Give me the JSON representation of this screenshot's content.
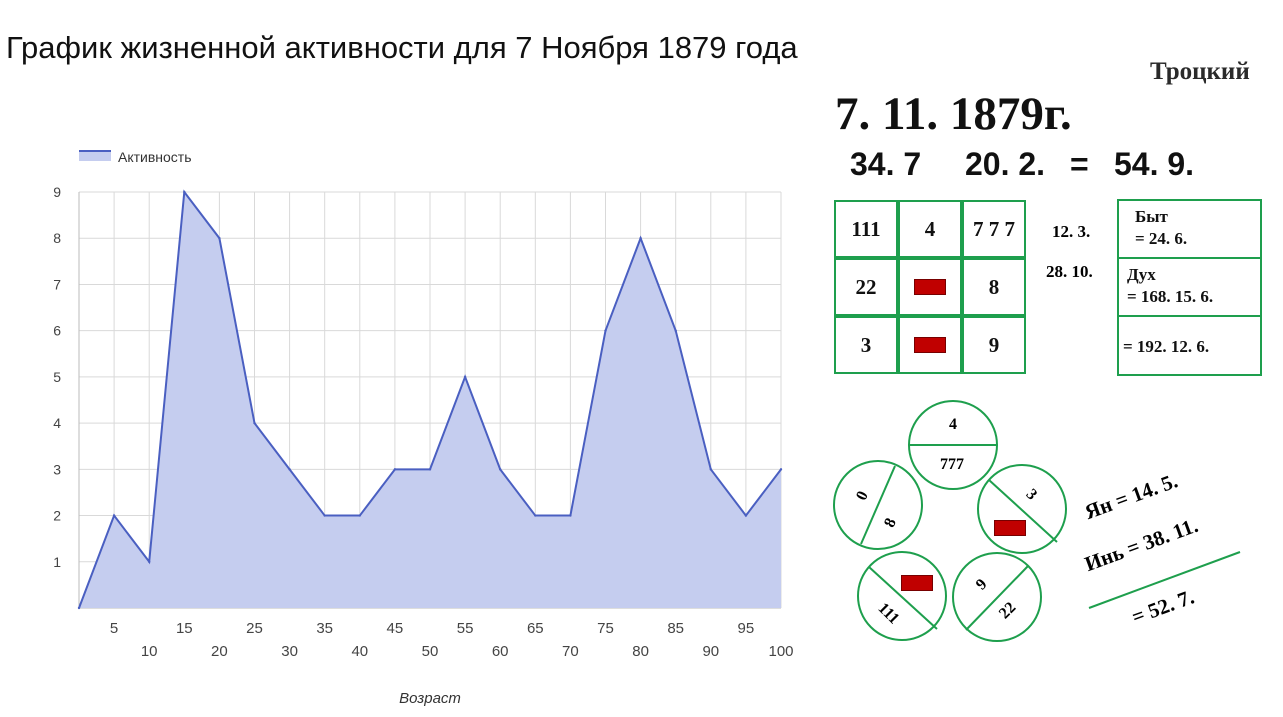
{
  "page": {
    "title": "График жизненной активности для 7 Ноября 1879 года"
  },
  "chart_data": {
    "type": "area",
    "x": [
      0,
      5,
      10,
      15,
      20,
      25,
      30,
      35,
      40,
      45,
      50,
      55,
      60,
      65,
      70,
      75,
      80,
      85,
      90,
      95,
      100
    ],
    "series": [
      {
        "name": "Активность",
        "values": [
          0,
          2,
          1,
          9,
          8,
          4,
          3,
          2,
          2,
          3,
          3,
          5,
          3,
          2,
          2,
          6,
          8,
          6,
          3,
          2,
          3
        ]
      }
    ],
    "xlabel": "Возраст",
    "ylabel": "",
    "xlim": [
      0,
      100
    ],
    "ylim": [
      0,
      9
    ],
    "y_ticks": [
      "1",
      "2",
      "3",
      "4",
      "5",
      "6",
      "7",
      "8",
      "9"
    ],
    "x_ticks_upper": [
      "5",
      "15",
      "25",
      "35",
      "45",
      "55",
      "65",
      "75",
      "85",
      "95"
    ],
    "x_ticks_lower": [
      "10",
      "20",
      "30",
      "40",
      "50",
      "60",
      "70",
      "80",
      "90",
      "100"
    ],
    "legend": "top-left",
    "grid": true,
    "colors": {
      "line": "#4a5fc1",
      "fill": "#c5cdef",
      "grid": "#d9d9d9"
    }
  },
  "numerology": {
    "name": "Троцкий",
    "date": "7. 11. 1879г.",
    "sum": {
      "a": "34. 7",
      "b": "20. 2.",
      "eq": "=",
      "total": "54. 9."
    },
    "square": {
      "cells": [
        "111",
        "4",
        "7 7 7",
        "22",
        "",
        "8",
        "3",
        "",
        "9"
      ],
      "red_cells": [
        4,
        7
      ]
    },
    "middle": {
      "m1": "12. 3.",
      "m2": "28. 10."
    },
    "boxes": {
      "byt_label": "Быт",
      "byt_value": "= 24. 6.",
      "dukh_label": "Дух",
      "dukh_value": "= 168. 15. 6.",
      "total": "= 192. 12. 6."
    },
    "circles": {
      "top": {
        "upper": "4",
        "lower": "777"
      },
      "left": {
        "a": "0",
        "b": "8"
      },
      "right": {
        "a": "3"
      },
      "bottom_left": {
        "a": "111"
      },
      "bottom_right": {
        "a": "9",
        "b": "22"
      }
    },
    "yinyang": {
      "yan": "Ян = 14. 5.",
      "yin": "Инь = 38. 11.",
      "total": "= 52. 7."
    },
    "colors": {
      "green": "#1e9f4d",
      "red": "#c00000"
    }
  }
}
